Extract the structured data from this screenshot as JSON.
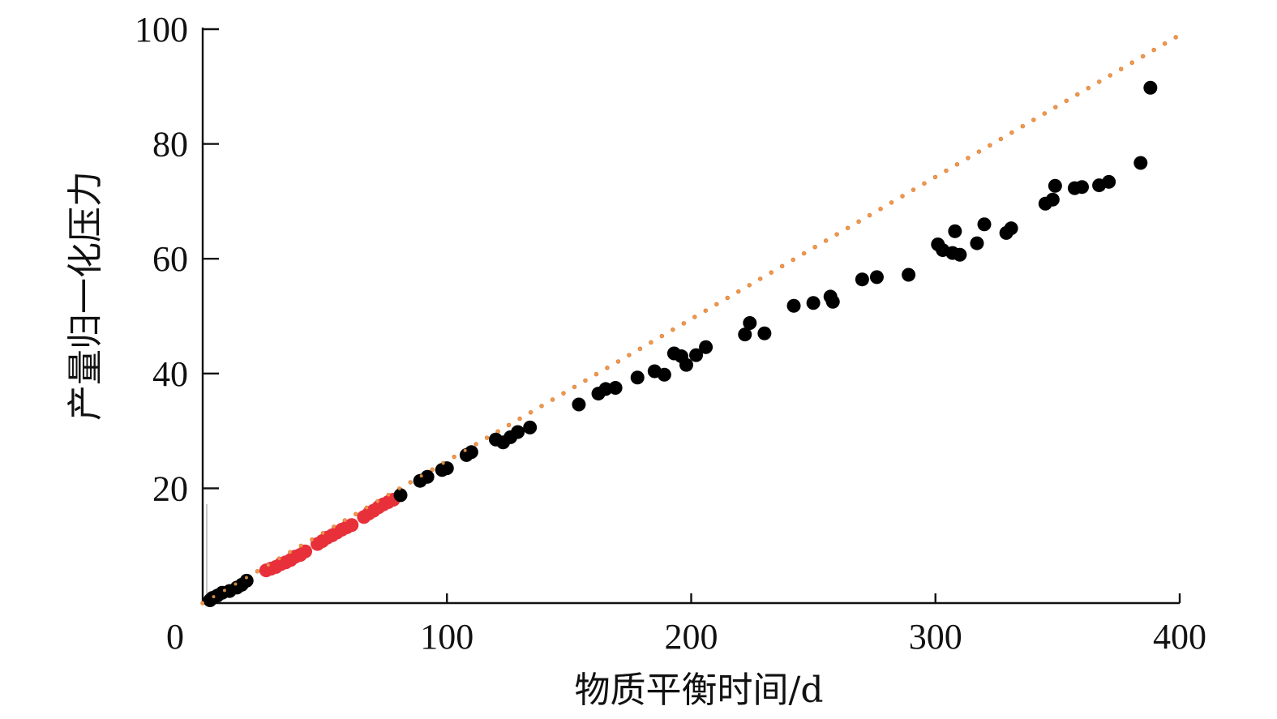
{
  "chart_data": {
    "type": "scatter",
    "xlabel": "物质平衡时间/d",
    "ylabel": "产量归一化压力",
    "xlim": [
      0,
      400
    ],
    "ylim": [
      0,
      100
    ],
    "grid": false,
    "x_ticks": [
      "0",
      "100",
      "200",
      "300",
      "400"
    ],
    "y_ticks": [
      "20",
      "40",
      "60",
      "80",
      "100"
    ],
    "trend_line": {
      "style": "dotted",
      "color": "#e07b39",
      "from": [
        0,
        0
      ],
      "to": [
        400,
        99
      ]
    },
    "series": [
      {
        "color": "#e8303a",
        "points": [
          [
            26,
            5.7
          ],
          [
            28,
            6.0
          ],
          [
            30,
            6.3
          ],
          [
            32,
            6.8
          ],
          [
            34,
            7.1
          ],
          [
            36,
            7.5
          ],
          [
            38,
            8.1
          ],
          [
            40,
            8.4
          ],
          [
            42,
            9.0
          ],
          [
            47,
            10.3
          ],
          [
            49,
            10.8
          ],
          [
            51,
            11.4
          ],
          [
            53,
            11.8
          ],
          [
            55,
            12.3
          ],
          [
            57,
            12.8
          ],
          [
            59,
            13.2
          ],
          [
            61,
            13.6
          ],
          [
            66,
            15.0
          ],
          [
            68,
            15.6
          ],
          [
            70,
            16.1
          ],
          [
            72,
            16.7
          ],
          [
            74,
            17.2
          ],
          [
            76,
            17.6
          ],
          [
            78,
            18.0
          ]
        ]
      },
      {
        "color": "#000000",
        "points": [
          [
            3,
            0.5
          ],
          [
            4,
            0.9
          ],
          [
            6,
            1.3
          ],
          [
            8,
            1.8
          ],
          [
            11,
            2.1
          ],
          [
            14,
            2.7
          ],
          [
            16,
            3.2
          ],
          [
            18,
            3.9
          ],
          [
            81,
            18.8
          ],
          [
            89,
            21.3
          ],
          [
            92,
            22.0
          ],
          [
            98,
            23.2
          ],
          [
            100,
            23.5
          ],
          [
            108,
            25.8
          ],
          [
            110,
            26.3
          ],
          [
            120,
            28.5
          ],
          [
            123,
            28.0
          ],
          [
            126,
            28.9
          ],
          [
            129,
            29.8
          ],
          [
            134,
            30.6
          ],
          [
            154,
            34.6
          ],
          [
            162,
            36.5
          ],
          [
            165,
            37.3
          ],
          [
            169,
            37.5
          ],
          [
            178,
            39.3
          ],
          [
            185,
            40.4
          ],
          [
            189,
            39.8
          ],
          [
            193,
            43.5
          ],
          [
            196,
            43.0
          ],
          [
            198,
            41.5
          ],
          [
            202,
            43.2
          ],
          [
            206,
            44.6
          ],
          [
            222,
            46.8
          ],
          [
            224,
            48.8
          ],
          [
            230,
            47.0
          ],
          [
            242,
            51.8
          ],
          [
            250,
            52.3
          ],
          [
            257,
            53.4
          ],
          [
            258,
            52.5
          ],
          [
            270,
            56.4
          ],
          [
            276,
            56.8
          ],
          [
            289,
            57.2
          ],
          [
            301,
            62.5
          ],
          [
            303,
            61.5
          ],
          [
            307,
            61.0
          ],
          [
            308,
            64.8
          ],
          [
            310,
            60.7
          ],
          [
            317,
            62.7
          ],
          [
            320,
            66.0
          ],
          [
            329,
            64.5
          ],
          [
            331,
            65.3
          ],
          [
            345,
            69.6
          ],
          [
            348,
            70.3
          ],
          [
            349,
            72.7
          ],
          [
            357,
            72.3
          ],
          [
            360,
            72.5
          ],
          [
            367,
            72.8
          ],
          [
            371,
            73.4
          ],
          [
            384,
            76.7
          ],
          [
            388,
            89.8
          ]
        ]
      }
    ]
  }
}
